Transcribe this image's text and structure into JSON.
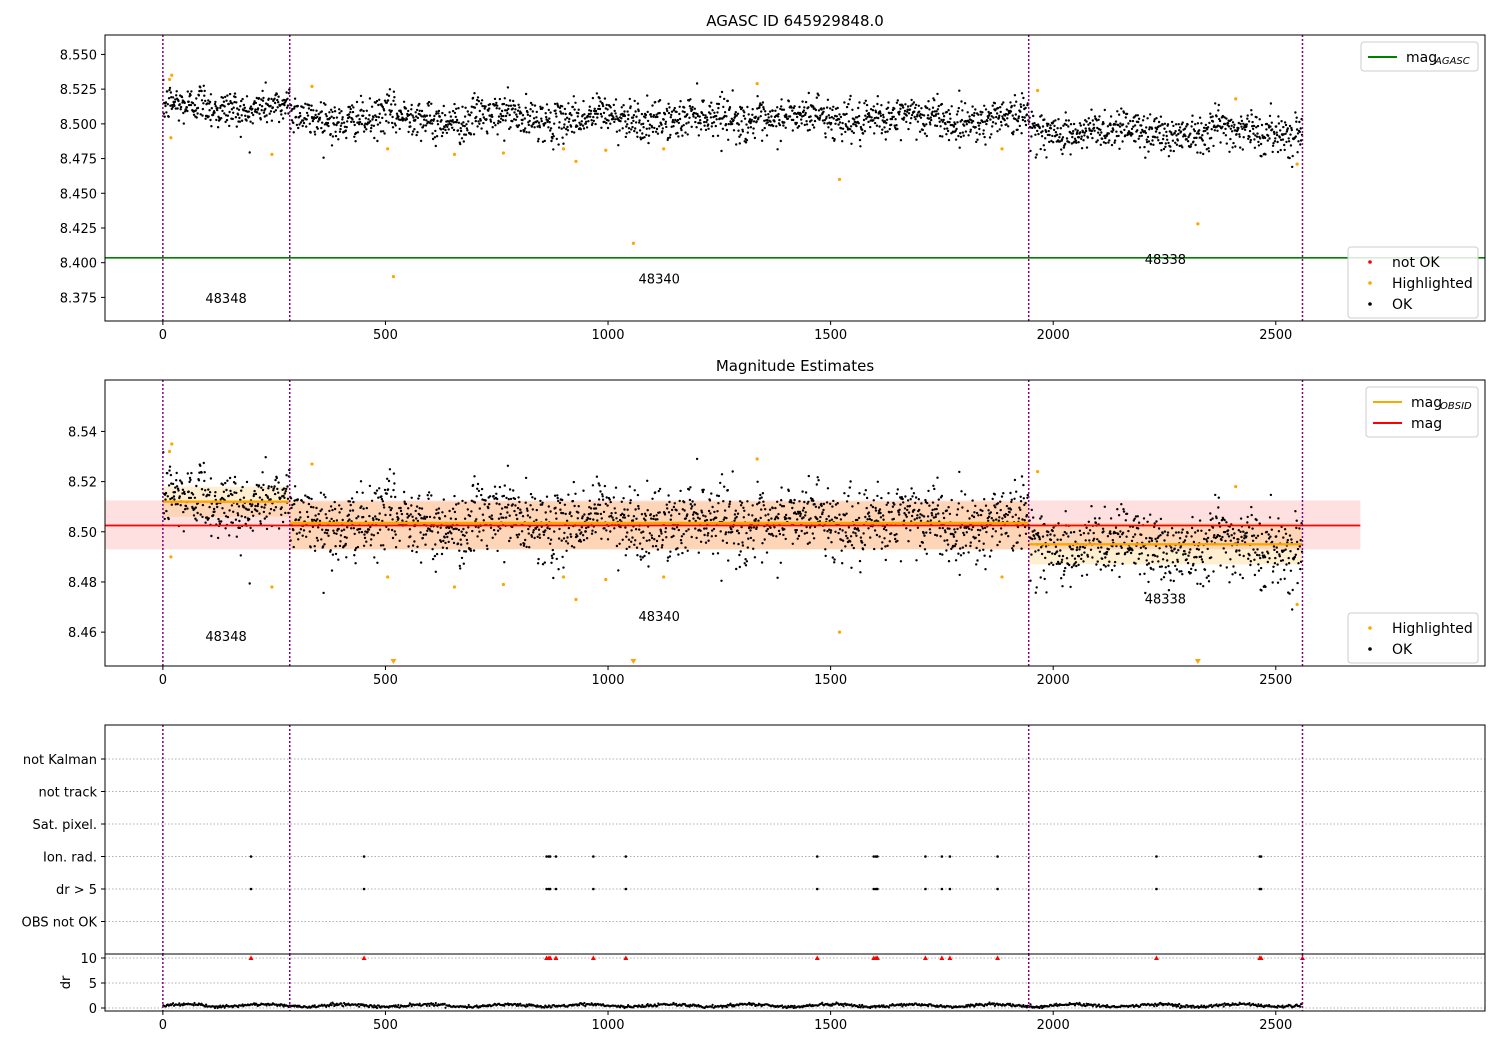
{
  "chart_data": [
    {
      "id": "top",
      "type": "scatter",
      "title": "AGASC ID 645929848.0",
      "xlim": [
        -130,
        2970
      ],
      "ylim": [
        8.358,
        8.564
      ],
      "x_ticks": [
        0,
        500,
        1000,
        1500,
        2000,
        2500
      ],
      "y_ticks": [
        8.375,
        8.4,
        8.425,
        8.45,
        8.475,
        8.5,
        8.525,
        8.55
      ],
      "y_tick_labels": [
        "8.375",
        "8.400",
        "8.425",
        "8.450",
        "8.475",
        "8.500",
        "8.525",
        "8.550"
      ],
      "obs_boundaries": [
        0,
        285,
        1945,
        2560
      ],
      "obsids": [
        {
          "label": "48348",
          "x": 142,
          "y": 8.371
        },
        {
          "label": "48340",
          "x": 1115,
          "y": 8.385
        },
        {
          "label": "48338",
          "x": 2252,
          "y": 8.399
        }
      ],
      "hlines": [
        {
          "name": "mag_AGASC",
          "y": 8.4035,
          "color": "#008000"
        }
      ],
      "ok_segments": [
        {
          "x0": 0,
          "x1": 285,
          "mean": 8.512,
          "std": 0.007
        },
        {
          "x0": 285,
          "x1": 1945,
          "mean": 8.504,
          "std": 0.007
        },
        {
          "x0": 1945,
          "x1": 2560,
          "mean": 8.495,
          "std": 0.007
        }
      ],
      "highlighted": [
        {
          "x": 15,
          "y": 8.532
        },
        {
          "x": 20,
          "y": 8.535
        },
        {
          "x": 18,
          "y": 8.49
        },
        {
          "x": 245,
          "y": 8.478
        },
        {
          "x": 335,
          "y": 8.527
        },
        {
          "x": 505,
          "y": 8.482
        },
        {
          "x": 518,
          "y": 8.39
        },
        {
          "x": 655,
          "y": 8.478
        },
        {
          "x": 765,
          "y": 8.479
        },
        {
          "x": 900,
          "y": 8.482
        },
        {
          "x": 928,
          "y": 8.473
        },
        {
          "x": 995,
          "y": 8.481
        },
        {
          "x": 1057,
          "y": 8.414
        },
        {
          "x": 1125,
          "y": 8.482
        },
        {
          "x": 1335,
          "y": 8.529
        },
        {
          "x": 1520,
          "y": 8.46
        },
        {
          "x": 1885,
          "y": 8.482
        },
        {
          "x": 1965,
          "y": 8.524
        },
        {
          "x": 2325,
          "y": 8.428
        },
        {
          "x": 2410,
          "y": 8.518
        },
        {
          "x": 2548,
          "y": 8.471
        }
      ],
      "legends": [
        {
          "position": "upper-right",
          "entries": [
            {
              "label": "mag",
              "sub": "AGASC",
              "kind": "line",
              "color": "#008000"
            }
          ]
        },
        {
          "position": "lower-right",
          "entries": [
            {
              "label": "not OK",
              "kind": "dot",
              "color": "#ff0000"
            },
            {
              "label": "Highlighted",
              "kind": "dot",
              "color": "#ffa500"
            },
            {
              "label": "OK",
              "kind": "dot",
              "color": "#000000"
            }
          ]
        }
      ]
    },
    {
      "id": "mid",
      "type": "scatter",
      "title": "Magnitude Estimates",
      "xlim": [
        -130,
        2970
      ],
      "ylim": [
        8.4465,
        8.5605
      ],
      "x_ticks": [
        0,
        500,
        1000,
        1500,
        2000,
        2500
      ],
      "y_ticks": [
        8.46,
        8.48,
        8.5,
        8.52,
        8.54
      ],
      "y_tick_labels": [
        "8.46",
        "8.48",
        "8.50",
        "8.52",
        "8.54"
      ],
      "obs_boundaries": [
        0,
        285,
        1945,
        2560
      ],
      "obsids": [
        {
          "label": "48348",
          "x": 142,
          "y": 8.4565
        },
        {
          "label": "48340",
          "x": 1115,
          "y": 8.4645
        },
        {
          "label": "48338",
          "x": 2252,
          "y": 8.4715
        }
      ],
      "mag": {
        "value": 8.5025,
        "band": [
          8.493,
          8.5125
        ],
        "x_range": [
          -130,
          2690
        ],
        "color": "#ff0000"
      },
      "mag_obsid": [
        {
          "obsid": "48348",
          "x0": 0,
          "x1": 285,
          "value": 8.512,
          "band": [
            8.506,
            8.518
          ]
        },
        {
          "obsid": "48340",
          "x0": 285,
          "x1": 1945,
          "value": 8.5035,
          "band": [
            8.493,
            8.512
          ]
        },
        {
          "obsid": "48338",
          "x0": 1945,
          "x1": 2560,
          "value": 8.495,
          "band": [
            8.487,
            8.5035
          ]
        }
      ],
      "ok_segments": [
        {
          "x0": 0,
          "x1": 285,
          "mean": 8.512,
          "std": 0.007
        },
        {
          "x0": 285,
          "x1": 1945,
          "mean": 8.504,
          "std": 0.007
        },
        {
          "x0": 1945,
          "x1": 2560,
          "mean": 8.495,
          "std": 0.007
        }
      ],
      "highlighted": [
        {
          "x": 15,
          "y": 8.532
        },
        {
          "x": 20,
          "y": 8.535
        },
        {
          "x": 18,
          "y": 8.49
        },
        {
          "x": 245,
          "y": 8.478
        },
        {
          "x": 335,
          "y": 8.527
        },
        {
          "x": 505,
          "y": 8.482
        },
        {
          "x": 655,
          "y": 8.478
        },
        {
          "x": 765,
          "y": 8.479
        },
        {
          "x": 900,
          "y": 8.482
        },
        {
          "x": 928,
          "y": 8.473
        },
        {
          "x": 995,
          "y": 8.481
        },
        {
          "x": 1125,
          "y": 8.482
        },
        {
          "x": 1335,
          "y": 8.529
        },
        {
          "x": 1520,
          "y": 8.46
        },
        {
          "x": 1885,
          "y": 8.482
        },
        {
          "x": 1965,
          "y": 8.524
        },
        {
          "x": 2410,
          "y": 8.518
        },
        {
          "x": 2548,
          "y": 8.471
        }
      ],
      "offscale_markers": [
        {
          "x": 518
        },
        {
          "x": 1057
        },
        {
          "x": 2325
        }
      ],
      "legends": [
        {
          "position": "upper-right",
          "entries": [
            {
              "label": "mag",
              "sub": "OBSID",
              "kind": "line",
              "color": "#ffa500"
            },
            {
              "label": "mag",
              "kind": "line",
              "color": "#ff0000"
            }
          ]
        },
        {
          "position": "lower-right",
          "entries": [
            {
              "label": "Highlighted",
              "kind": "dot",
              "color": "#ffa500"
            },
            {
              "label": "OK",
              "kind": "dot",
              "color": "#000000"
            }
          ]
        }
      ]
    },
    {
      "id": "flags",
      "type": "scatter",
      "xlim": [
        -130,
        2970
      ],
      "x_ticks": [
        0,
        500,
        1000,
        1500,
        2000,
        2500
      ],
      "obs_boundaries": [
        0,
        285,
        1945,
        2560
      ],
      "categories": [
        "not Kalman",
        "not track",
        "Sat. pixel.",
        "Ion. rad.",
        "dr > 5",
        "OBS not OK"
      ],
      "flagged_times": [
        198,
        452,
        862,
        867,
        870,
        883,
        967,
        1040,
        1470,
        1597,
        1602,
        1605,
        1713,
        1750,
        1768,
        1875,
        2232,
        2464,
        2467
      ],
      "flag_rows": [
        "Ion. rad.",
        "dr > 5"
      ]
    },
    {
      "id": "dr",
      "type": "scatter",
      "ylabel": "dr",
      "xlim": [
        -130,
        2970
      ],
      "ylim": [
        -0.6,
        10.8
      ],
      "y_ticks": [
        0,
        5,
        10
      ],
      "x_ticks": [
        0,
        500,
        1000,
        1500,
        2000,
        2500
      ],
      "obs_boundaries": [
        0,
        285,
        1945,
        2560
      ],
      "baseline_mean": 0.5,
      "capped_value": 10
    }
  ],
  "colors": {
    "ok": "#000000",
    "highlighted": "#ffa500",
    "not_ok": "#ff0000",
    "boundary": "#800080",
    "agasc": "#008000",
    "grid": "#b0b0b0"
  }
}
